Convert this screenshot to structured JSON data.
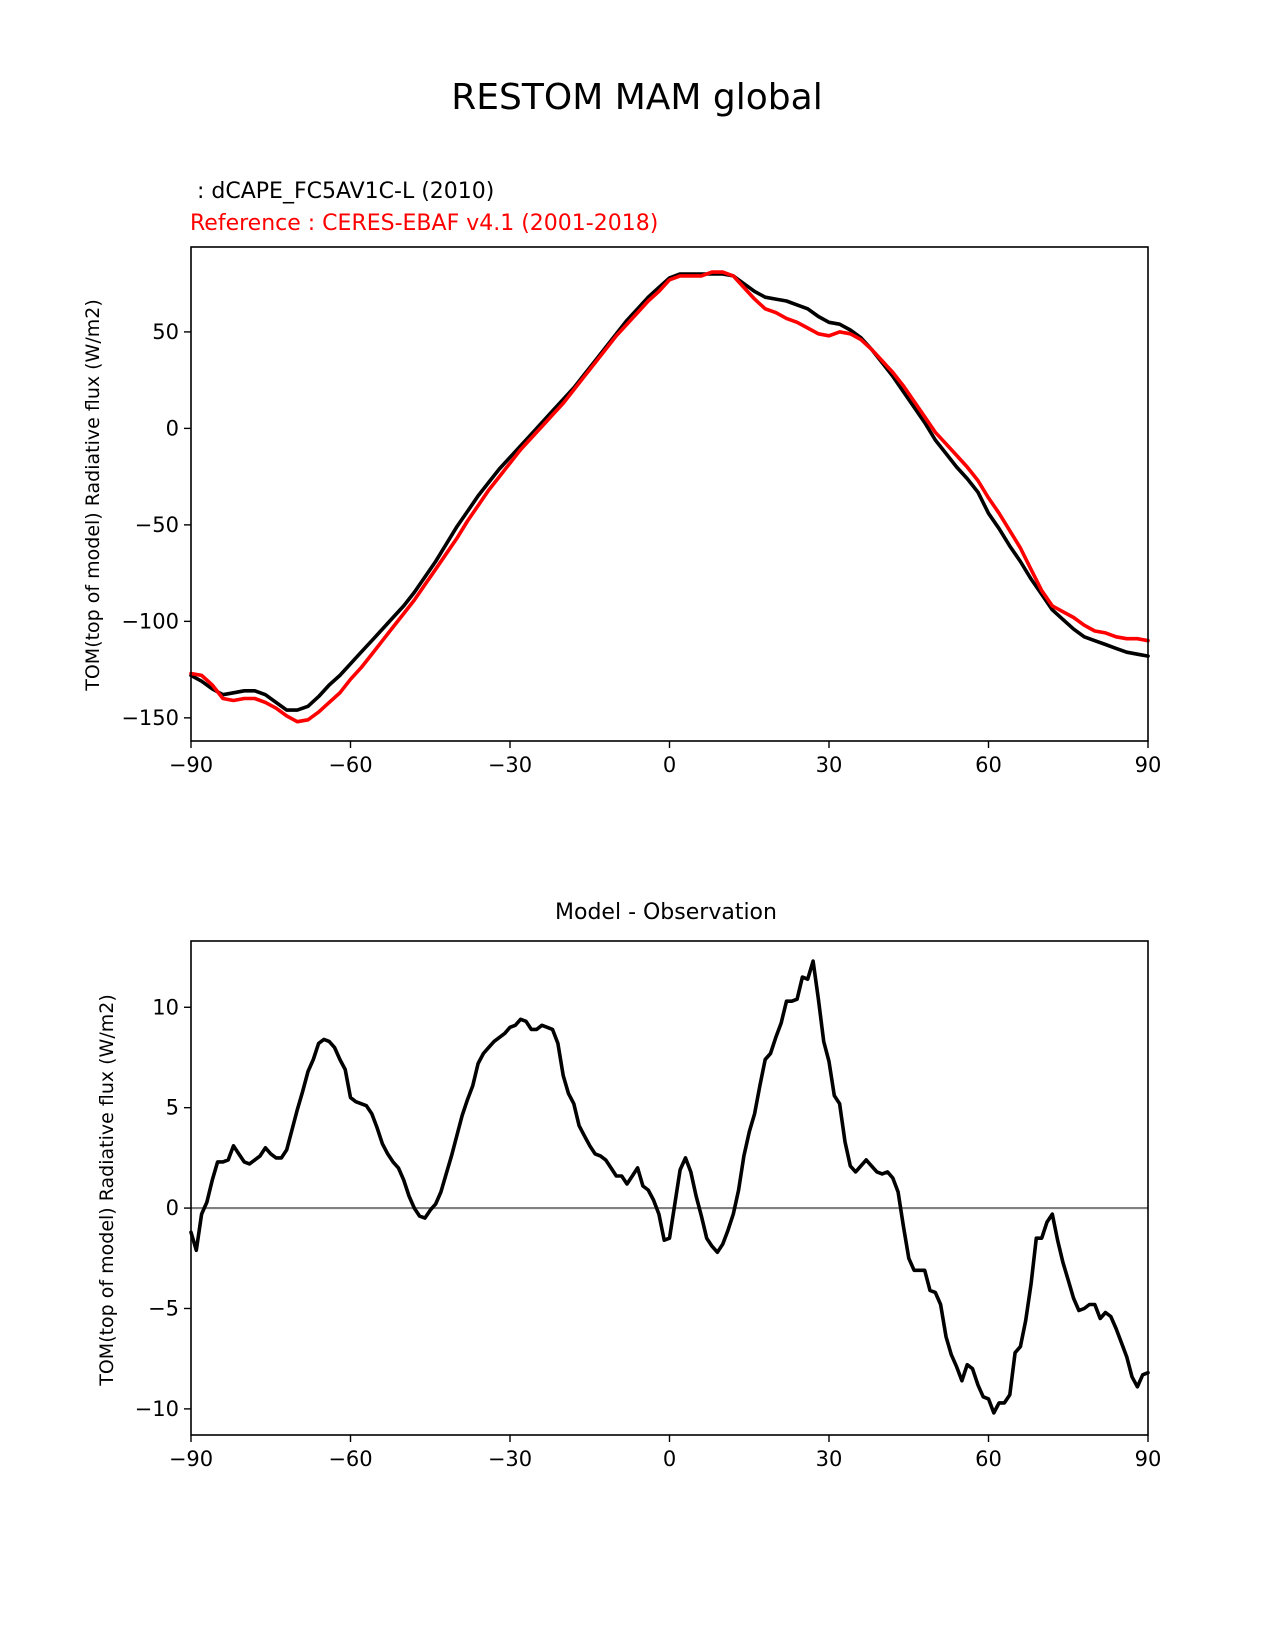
{
  "figure": {
    "suptitle": "RESTOM MAM global"
  },
  "colors": {
    "model": "#000000",
    "reference": "#ff0000",
    "zero_line": "#808080"
  },
  "chart_data": [
    {
      "type": "line",
      "title_model": " : dCAPE_FC5AV1C-L (2010)",
      "title_reference": "Reference : CERES-EBAF v4.1 (2001-2018)",
      "xlabel": "",
      "ylabel": "TOM(top of model) Radiative flux (W/m2)",
      "xlim": [
        -90,
        90
      ],
      "ylim": [
        -162,
        94
      ],
      "xticks": [
        -90,
        -60,
        -30,
        0,
        30,
        60,
        90
      ],
      "xtick_labels": [
        "−90",
        "−60",
        "−30",
        "0",
        "30",
        "60",
        "90"
      ],
      "yticks": [
        -150,
        -100,
        -50,
        0,
        50
      ],
      "ytick_labels": [
        "−150",
        "−100",
        "−50",
        "0",
        "50"
      ],
      "grid": false,
      "series": [
        {
          "role": "model",
          "x": [
            -90,
            -88,
            -86,
            -84,
            -82,
            -80,
            -78,
            -76,
            -74,
            -72,
            -70,
            -68,
            -66,
            -64,
            -62,
            -60,
            -58,
            -56,
            -54,
            -52,
            -50,
            -48,
            -46,
            -44,
            -42,
            -40,
            -38,
            -36,
            -34,
            -32,
            -30,
            -28,
            -26,
            -24,
            -22,
            -20,
            -18,
            -16,
            -14,
            -12,
            -10,
            -8,
            -6,
            -4,
            -2,
            0,
            2,
            4,
            6,
            8,
            10,
            12,
            14,
            16,
            18,
            20,
            22,
            24,
            26,
            28,
            30,
            32,
            34,
            36,
            38,
            40,
            42,
            44,
            46,
            48,
            50,
            52,
            54,
            56,
            58,
            60,
            62,
            64,
            66,
            68,
            70,
            72,
            74,
            76,
            78,
            80,
            82,
            84,
            86,
            88,
            90
          ],
          "y": [
            -128,
            -131,
            -135,
            -138,
            -137,
            -136,
            -136,
            -138,
            -142,
            -146,
            -146,
            -144,
            -139,
            -133,
            -128,
            -122,
            -116,
            -110,
            -104,
            -98,
            -92,
            -85,
            -77,
            -69,
            -60,
            -51,
            -43,
            -35,
            -28,
            -21,
            -15,
            -9,
            -3,
            3,
            9,
            15,
            21,
            28,
            35,
            42,
            49,
            56,
            62,
            68,
            73,
            78,
            80,
            80,
            80,
            80,
            80,
            79,
            75,
            71,
            68,
            67,
            66,
            64,
            62,
            58,
            55,
            54,
            51,
            47,
            41,
            34,
            27,
            19,
            11,
            3,
            -6,
            -13,
            -20,
            -26,
            -33,
            -44,
            -52,
            -61,
            -69,
            -78,
            -86,
            -94,
            -99,
            -104,
            -108,
            -110,
            -112,
            -114,
            -116,
            -117,
            -118
          ]
        },
        {
          "role": "reference",
          "x": [
            -90,
            -88,
            -86,
            -84,
            -82,
            -80,
            -78,
            -76,
            -74,
            -72,
            -70,
            -68,
            -66,
            -64,
            -62,
            -60,
            -58,
            -56,
            -54,
            -52,
            -50,
            -48,
            -46,
            -44,
            -42,
            -40,
            -38,
            -36,
            -34,
            -32,
            -30,
            -28,
            -26,
            -24,
            -22,
            -20,
            -18,
            -16,
            -14,
            -12,
            -10,
            -8,
            -6,
            -4,
            -2,
            0,
            2,
            4,
            6,
            8,
            10,
            12,
            14,
            16,
            18,
            20,
            22,
            24,
            26,
            28,
            30,
            32,
            34,
            36,
            38,
            40,
            42,
            44,
            46,
            48,
            50,
            52,
            54,
            56,
            58,
            60,
            62,
            64,
            66,
            68,
            70,
            72,
            74,
            76,
            78,
            80,
            82,
            84,
            86,
            88,
            90
          ],
          "y": [
            -127,
            -128,
            -133,
            -140,
            -141,
            -140,
            -140,
            -142,
            -145,
            -149,
            -152,
            -151,
            -147,
            -142,
            -137,
            -130,
            -124,
            -117,
            -110,
            -103,
            -96,
            -89,
            -81,
            -73,
            -65,
            -57,
            -48,
            -40,
            -32,
            -25,
            -18,
            -11,
            -5,
            1,
            7,
            13,
            20,
            27,
            34,
            41,
            48,
            54,
            60,
            66,
            71,
            77,
            79,
            79,
            79,
            81,
            81,
            79,
            73,
            67,
            62,
            60,
            57,
            55,
            52,
            49,
            48,
            50,
            49,
            46,
            41,
            35,
            29,
            22,
            14,
            6,
            -2,
            -8,
            -14,
            -20,
            -27,
            -36,
            -44,
            -53,
            -62,
            -73,
            -84,
            -92,
            -95,
            -98,
            -102,
            -105,
            -106,
            -108,
            -109,
            -109,
            -110
          ]
        }
      ]
    },
    {
      "type": "line",
      "title": "Model - Observation",
      "xlabel": "",
      "ylabel": "TOM(top of model) Radiative flux (W/m2)",
      "xlim": [
        -90,
        90
      ],
      "ylim": [
        -11.3,
        13.3
      ],
      "xticks": [
        -90,
        -60,
        -30,
        0,
        30,
        60,
        90
      ],
      "xtick_labels": [
        "−90",
        "−60",
        "−30",
        "0",
        "30",
        "60",
        "90"
      ],
      "yticks": [
        -10,
        -5,
        0,
        5,
        10
      ],
      "ytick_labels": [
        "−10",
        "−5",
        "0",
        "5",
        "10"
      ],
      "grid": false,
      "zero_line": 0,
      "series": [
        {
          "role": "difference",
          "x": [
            -90,
            -89,
            -88,
            -87,
            -86,
            -85,
            -84,
            -83,
            -82,
            -81,
            -80,
            -79,
            -78,
            -77,
            -76,
            -75,
            -74,
            -73,
            -72,
            -71,
            -70,
            -69,
            -68,
            -67,
            -66,
            -65,
            -64,
            -63,
            -62,
            -61,
            -60,
            -59,
            -58,
            -57,
            -56,
            -55,
            -54,
            -53,
            -52,
            -51,
            -50,
            -49,
            -48,
            -47,
            -46,
            -45,
            -44,
            -43,
            -42,
            -41,
            -40,
            -39,
            -38,
            -37,
            -36,
            -35,
            -34,
            -33,
            -32,
            -31,
            -30,
            -29,
            -28,
            -27,
            -26,
            -25,
            -24,
            -23,
            -22,
            -21,
            -20,
            -19,
            -18,
            -17,
            -16,
            -15,
            -14,
            -13,
            -12,
            -11,
            -10,
            -9,
            -8,
            -7,
            -6,
            -5,
            -4,
            -3,
            -2,
            -1,
            0,
            1,
            2,
            3,
            4,
            5,
            6,
            7,
            8,
            9,
            10,
            11,
            12,
            13,
            14,
            15,
            16,
            17,
            18,
            19,
            20,
            21,
            22,
            23,
            24,
            25,
            26,
            27,
            28,
            29,
            30,
            31,
            32,
            33,
            34,
            35,
            36,
            37,
            38,
            39,
            40,
            41,
            42,
            43,
            44,
            45,
            46,
            47,
            48,
            49,
            50,
            51,
            52,
            53,
            54,
            55,
            56,
            57,
            58,
            59,
            60,
            61,
            62,
            63,
            64,
            65,
            66,
            67,
            68,
            69,
            70,
            71,
            72,
            73,
            74,
            75,
            76,
            77,
            78,
            79,
            80,
            81,
            82,
            83,
            84,
            85,
            86,
            87,
            88,
            89,
            90
          ],
          "y": [
            -1.2,
            -2.1,
            -0.3,
            0.3,
            1.4,
            2.3,
            2.3,
            2.4,
            3.1,
            2.7,
            2.3,
            2.2,
            2.4,
            2.6,
            3.0,
            2.7,
            2.5,
            2.5,
            2.9,
            3.9,
            4.9,
            5.8,
            6.8,
            7.4,
            8.2,
            8.4,
            8.3,
            8.0,
            7.4,
            6.9,
            5.5,
            5.3,
            5.2,
            5.1,
            4.7,
            4.0,
            3.2,
            2.7,
            2.3,
            2.0,
            1.4,
            0.6,
            0.0,
            -0.4,
            -0.5,
            -0.1,
            0.2,
            0.8,
            1.7,
            2.6,
            3.6,
            4.6,
            5.4,
            6.1,
            7.2,
            7.7,
            8.0,
            8.3,
            8.5,
            8.7,
            9.0,
            9.1,
            9.4,
            9.3,
            8.9,
            8.9,
            9.1,
            9.0,
            8.9,
            8.2,
            6.6,
            5.7,
            5.2,
            4.1,
            3.6,
            3.1,
            2.7,
            2.6,
            2.4,
            2.0,
            1.6,
            1.6,
            1.2,
            1.6,
            2.0,
            1.1,
            0.9,
            0.4,
            -0.3,
            -1.6,
            -1.5,
            0.2,
            1.9,
            2.5,
            1.8,
            0.6,
            -0.4,
            -1.5,
            -1.9,
            -2.2,
            -1.8,
            -1.1,
            -0.3,
            0.9,
            2.6,
            3.8,
            4.7,
            6.1,
            7.4,
            7.7,
            8.5,
            9.2,
            10.3,
            10.3,
            10.4,
            11.5,
            11.4,
            12.3,
            10.4,
            8.3,
            7.3,
            5.6,
            5.2,
            3.3,
            2.1,
            1.8,
            2.1,
            2.4,
            2.1,
            1.8,
            1.7,
            1.8,
            1.5,
            0.8,
            -0.9,
            -2.5,
            -3.1,
            -3.1,
            -3.1,
            -4.1,
            -4.2,
            -4.8,
            -6.4,
            -7.3,
            -7.9,
            -8.6,
            -7.8,
            -8.0,
            -8.8,
            -9.4,
            -9.5,
            -10.2,
            -9.7,
            -9.7,
            -9.3,
            -7.2,
            -6.9,
            -5.6,
            -3.8,
            -1.5,
            -1.5,
            -0.7,
            -0.3,
            -1.6,
            -2.7,
            -3.6,
            -4.5,
            -5.1,
            -5.0,
            -4.8,
            -4.8,
            -5.5,
            -5.2,
            -5.4,
            -6.0,
            -6.7,
            -7.4,
            -8.4,
            -8.9,
            -8.3,
            -8.2
          ]
        }
      ]
    }
  ]
}
